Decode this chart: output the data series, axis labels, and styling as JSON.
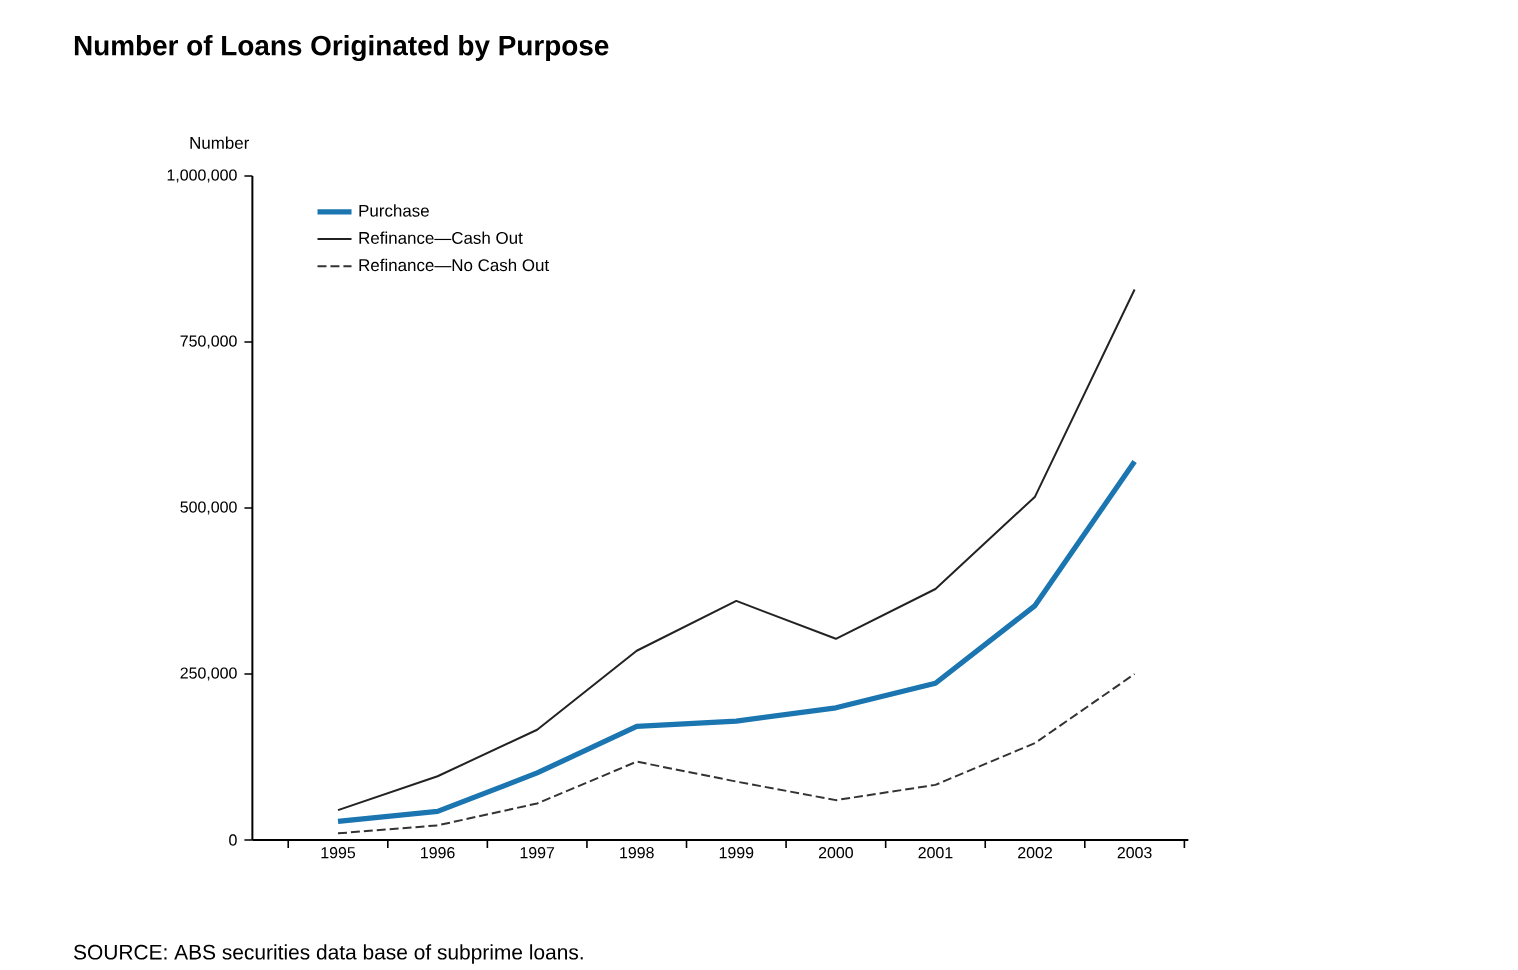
{
  "chart_data": {
    "type": "line",
    "title": "Number of Loans Originated by Purpose",
    "ylabel": "Number",
    "categories": [
      "1995",
      "1996",
      "1997",
      "1998",
      "1999",
      "2000",
      "2001",
      "2002",
      "2003"
    ],
    "series": [
      {
        "name": "Purchase",
        "color": "#1a75b0",
        "line_style": "solid",
        "values": [
          28000,
          43000,
          101000,
          171000,
          179000,
          199000,
          236000,
          353000,
          570000
        ]
      },
      {
        "name": "Refinance—Cash Out",
        "color": "#222222",
        "line_style": "solid",
        "values": [
          45000,
          96000,
          166000,
          285000,
          360000,
          303000,
          378000,
          517000,
          829000
        ]
      },
      {
        "name": "Refinance—No Cash Out",
        "color": "#333333",
        "line_style": "dashed",
        "values": [
          10000,
          22000,
          55000,
          118000,
          88000,
          60000,
          83000,
          146000,
          250000
        ]
      }
    ],
    "ylim": [
      0,
      1000000
    ],
    "yticks": [
      {
        "value": 0,
        "label": "0"
      },
      {
        "value": 250000,
        "label": "250,000"
      },
      {
        "value": 500000,
        "label": "500,000"
      },
      {
        "value": 750000,
        "label": "750,000"
      },
      {
        "value": 1000000,
        "label": "1,000,000"
      }
    ],
    "grid": false,
    "legend": "top left",
    "marker": "none",
    "annotations": [
      "SOURCE: ABS securities data base of subprime loans."
    ]
  }
}
